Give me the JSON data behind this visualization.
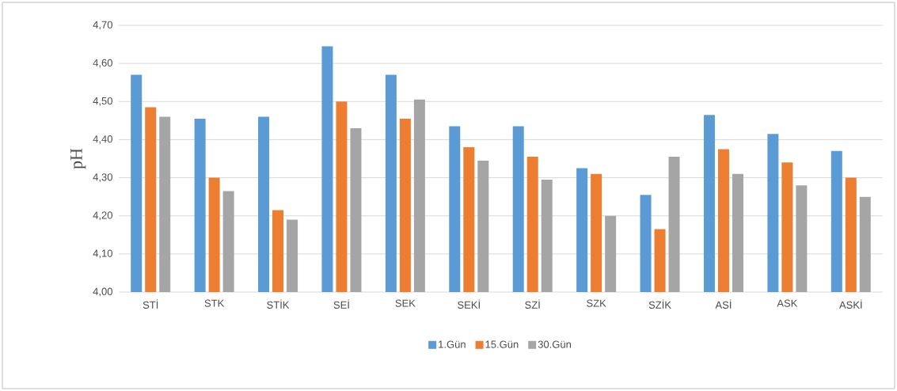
{
  "chart_data": {
    "type": "bar",
    "ylabel": "pH",
    "categories": [
      "STİ",
      "STK",
      "STİK",
      "SEİ",
      "SEK",
      "SEKİ",
      "SZİ",
      "SZK",
      "SZİK",
      "ASİ",
      "ASK",
      "ASKİ"
    ],
    "series": [
      {
        "name": "1.Gün",
        "color": "#5b9bd5",
        "values": [
          4.57,
          4.455,
          4.46,
          4.645,
          4.57,
          4.435,
          4.435,
          4.325,
          4.255,
          4.465,
          4.415,
          4.37
        ]
      },
      {
        "name": "15.Gün",
        "color": "#ed7d31",
        "values": [
          4.485,
          4.3,
          4.215,
          4.5,
          4.455,
          4.38,
          4.355,
          4.31,
          4.165,
          4.375,
          4.34,
          4.3
        ]
      },
      {
        "name": "30.Gün",
        "color": "#a5a5a5",
        "values": [
          4.46,
          4.265,
          4.19,
          4.43,
          4.505,
          4.345,
          4.295,
          4.2,
          4.355,
          4.31,
          4.28,
          4.25
        ]
      }
    ],
    "ylim": [
      4.0,
      4.7
    ],
    "yticks": [
      {
        "value": 4.0,
        "label": "4,00"
      },
      {
        "value": 4.1,
        "label": "4,10"
      },
      {
        "value": 4.2,
        "label": "4,20"
      },
      {
        "value": 4.3,
        "label": "4,30"
      },
      {
        "value": 4.4,
        "label": "4,40"
      },
      {
        "value": 4.5,
        "label": "4,50"
      },
      {
        "value": 4.6,
        "label": "4,60"
      },
      {
        "value": 4.7,
        "label": "4,70"
      }
    ],
    "grid": "y",
    "legend": "bottom"
  }
}
